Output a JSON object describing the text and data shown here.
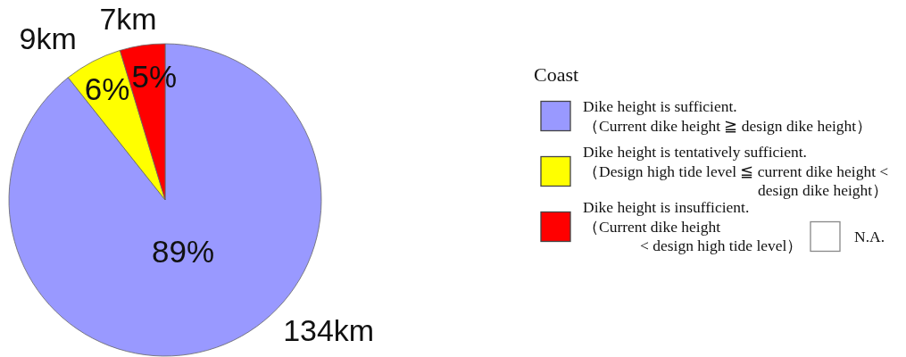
{
  "chart_data": {
    "type": "pie",
    "legend_title": "Coast",
    "legend": "right",
    "categories": [
      "Dike height is sufficient.\n（Current dike height ≧ design dike height）",
      "Dike height is tentatively sufficient.\n（Design high tide level ≦ current dike height <\ndesign dike height）",
      "Dike height is insufficient.\n（Current dike height\n< design high tide level）",
      "N.A."
    ],
    "values": [
      134,
      9,
      7,
      null
    ],
    "colors": [
      "#9999ff",
      "#ffff00",
      "#ff0000",
      "#ffffff"
    ],
    "value_labels": [
      "134km",
      "9km",
      "7km",
      null
    ],
    "annotations": [
      "89%",
      "6%",
      "5%"
    ]
  }
}
